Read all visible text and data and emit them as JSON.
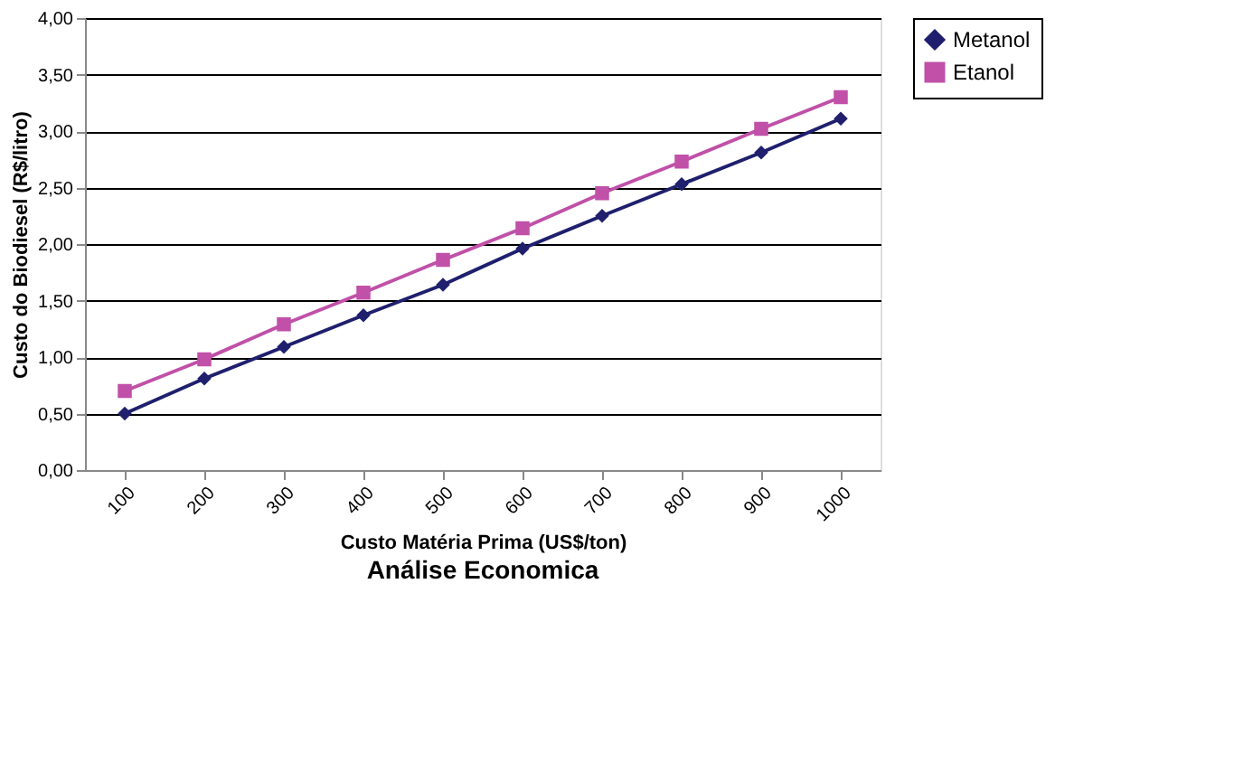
{
  "chart_data": {
    "type": "line",
    "title": "Análise Economica",
    "xlabel": "Custo Matéria Prima (US$/ton)",
    "ylabel": "Custo do Biodiesel (R$/litro)",
    "categories": [
      "100",
      "200",
      "300",
      "400",
      "500",
      "600",
      "700",
      "800",
      "900",
      "1000"
    ],
    "series": [
      {
        "name": "Metanol",
        "color": "#1f1f6e",
        "marker": "diamond",
        "values": [
          0.5,
          0.81,
          1.09,
          1.37,
          1.64,
          1.96,
          2.25,
          2.53,
          2.81,
          3.11
        ]
      },
      {
        "name": "Etanol",
        "color": "#c050a8",
        "marker": "square",
        "values": [
          0.7,
          0.98,
          1.29,
          1.57,
          1.86,
          2.14,
          2.45,
          2.73,
          3.02,
          3.3
        ]
      }
    ],
    "ylim": [
      0,
      4
    ],
    "yticks": [
      {
        "value": 0,
        "label": "0,00"
      },
      {
        "value": 0.5,
        "label": "0,50"
      },
      {
        "value": 1,
        "label": "1,00"
      },
      {
        "value": 1.5,
        "label": "1,50"
      },
      {
        "value": 2,
        "label": "2,00"
      },
      {
        "value": 2.5,
        "label": "2,50"
      },
      {
        "value": 3,
        "label": "3,00"
      },
      {
        "value": 3.5,
        "label": "3,50"
      },
      {
        "value": 4,
        "label": "4,00"
      }
    ],
    "grid": "y",
    "legend": "right",
    "line_style": "solid"
  }
}
